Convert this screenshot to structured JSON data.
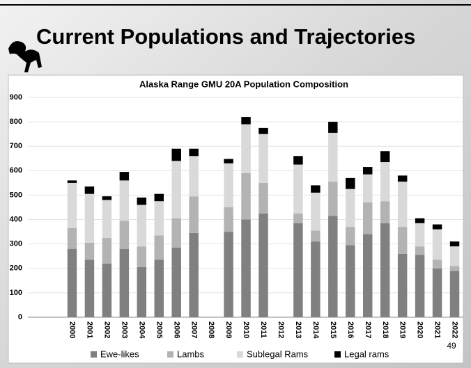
{
  "slide_title": "Current Populations and Trajectories",
  "page_number": "49",
  "chart_data": {
    "type": "stacked-bar",
    "title": "Alaska Range GMU 20A Population Composition",
    "categories": [
      "2000",
      "2001",
      "2002",
      "2003",
      "2004",
      "2005",
      "2006",
      "2007",
      "2008",
      "2009",
      "2010",
      "2011",
      "2012",
      "2013",
      "2014",
      "2015",
      "2016",
      "2017",
      "2018",
      "2019",
      "2020",
      "2021",
      "2022"
    ],
    "series": [
      {
        "name": "Ewe-likes",
        "color": "#808080",
        "values": [
          280,
          235,
          220,
          280,
          205,
          235,
          285,
          345,
          null,
          350,
          400,
          425,
          null,
          385,
          310,
          415,
          295,
          340,
          385,
          260,
          255,
          200,
          190
        ]
      },
      {
        "name": "Lambs",
        "color": "#b3b3b3",
        "values": [
          85,
          70,
          105,
          115,
          85,
          100,
          120,
          150,
          null,
          100,
          190,
          125,
          null,
          40,
          45,
          140,
          75,
          130,
          90,
          110,
          35,
          35,
          20
        ]
      },
      {
        "name": "Sublegal Rams",
        "color": "#d9d9d9",
        "values": [
          185,
          200,
          155,
          165,
          170,
          140,
          235,
          165,
          null,
          180,
          200,
          200,
          null,
          200,
          155,
          200,
          155,
          115,
          160,
          185,
          95,
          125,
          80
        ]
      },
      {
        "name": "Legal rams",
        "color": "#000000",
        "values": [
          10,
          30,
          15,
          35,
          30,
          30,
          50,
          30,
          null,
          18,
          30,
          25,
          null,
          35,
          30,
          45,
          45,
          30,
          45,
          25,
          20,
          20,
          20
        ]
      }
    ],
    "ylim": [
      0,
      900
    ],
    "yticks": [
      0,
      100,
      200,
      300,
      400,
      500,
      600,
      700,
      800,
      900
    ],
    "grid": true,
    "legend": "bottom"
  }
}
